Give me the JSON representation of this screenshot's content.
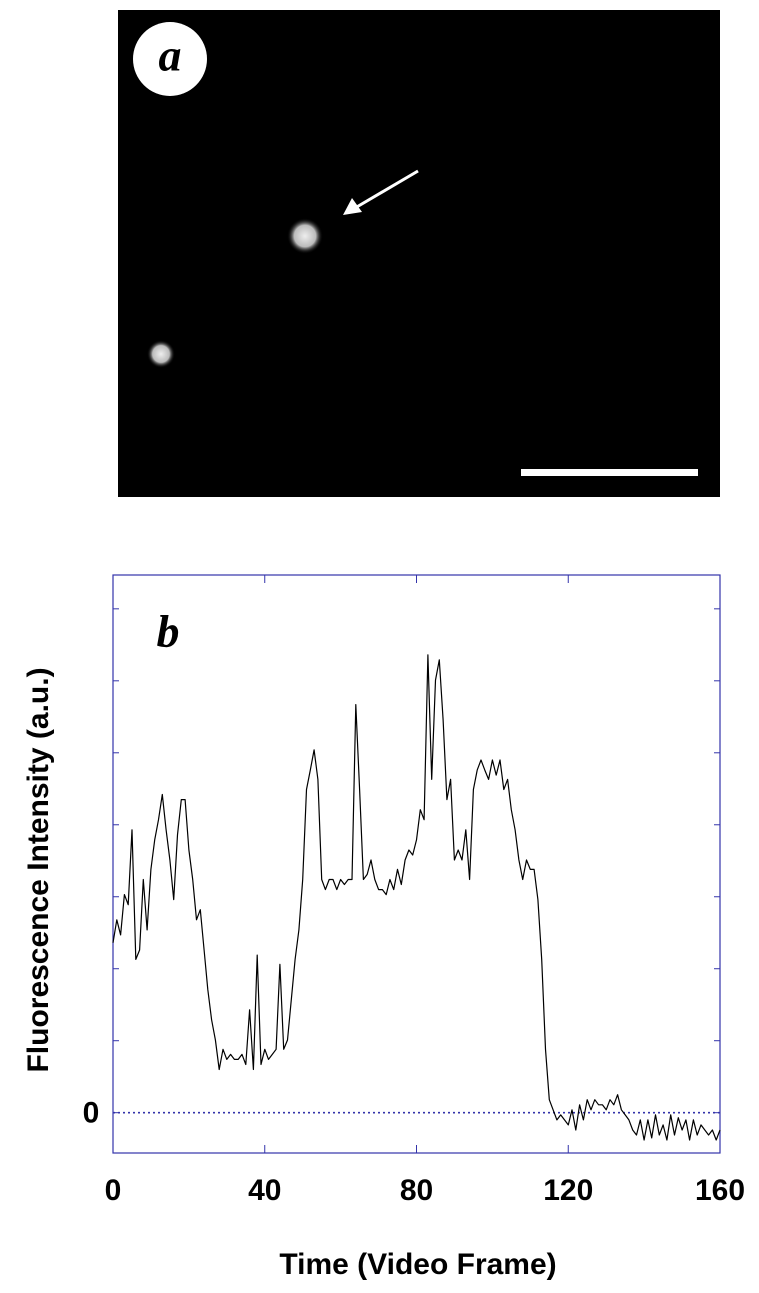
{
  "image_panel": {
    "label": "a"
  },
  "chart_data": {
    "type": "line",
    "panel_label": "b",
    "xlabel": "Time (Video Frame)",
    "ylabel": "Fluorescence Intensity (a.u.)",
    "color": "#000000",
    "axis_color": "#3333aa",
    "zero_line": true,
    "xlim": [
      0,
      160
    ],
    "xticks": [
      0,
      40,
      80,
      120,
      160
    ],
    "ylim": [
      -0.56,
      7.47
    ],
    "yticks": [
      0
    ],
    "yminor": [
      1,
      2,
      3,
      4,
      5,
      6,
      7
    ],
    "x": [
      0,
      1,
      2,
      3,
      4,
      5,
      6,
      7,
      8,
      9,
      10,
      11,
      12,
      13,
      14,
      15,
      16,
      17,
      18,
      19,
      20,
      21,
      22,
      23,
      24,
      25,
      26,
      27,
      28,
      29,
      30,
      31,
      32,
      33,
      34,
      35,
      36,
      37,
      38,
      39,
      40,
      41,
      42,
      43,
      44,
      45,
      46,
      47,
      48,
      49,
      50,
      51,
      52,
      53,
      54,
      55,
      56,
      57,
      58,
      59,
      60,
      61,
      62,
      63,
      64,
      65,
      66,
      67,
      68,
      69,
      70,
      71,
      72,
      73,
      74,
      75,
      76,
      77,
      78,
      79,
      80,
      81,
      82,
      83,
      84,
      85,
      86,
      87,
      88,
      89,
      90,
      91,
      92,
      93,
      94,
      95,
      96,
      97,
      98,
      99,
      100,
      101,
      102,
      103,
      104,
      105,
      106,
      107,
      108,
      109,
      110,
      111,
      112,
      113,
      114,
      115,
      116,
      117,
      118,
      119,
      120,
      121,
      122,
      123,
      124,
      125,
      126,
      127,
      128,
      129,
      130,
      131,
      132,
      133,
      134,
      135,
      136,
      137,
      138,
      139,
      140,
      141,
      142,
      143,
      144,
      145,
      146,
      147,
      148,
      149,
      150,
      151,
      152,
      153,
      154,
      155,
      156,
      157,
      158,
      159,
      160
    ],
    "values": [
      2.36,
      2.68,
      2.47,
      3.03,
      2.89,
      3.93,
      2.13,
      2.26,
      3.24,
      2.54,
      3.38,
      3.79,
      4.07,
      4.42,
      3.93,
      3.51,
      2.96,
      3.86,
      4.35,
      4.35,
      3.65,
      3.24,
      2.68,
      2.82,
      2.26,
      1.71,
      1.29,
      1.01,
      0.6,
      0.88,
      0.74,
      0.81,
      0.74,
      0.74,
      0.81,
      0.67,
      1.43,
      0.6,
      2.19,
      0.67,
      0.88,
      0.74,
      0.81,
      0.88,
      2.06,
      0.88,
      1.01,
      1.57,
      2.13,
      2.54,
      3.24,
      4.49,
      4.76,
      5.04,
      4.63,
      3.24,
      3.1,
      3.24,
      3.24,
      3.1,
      3.24,
      3.17,
      3.24,
      3.24,
      5.67,
      4.49,
      3.24,
      3.31,
      3.51,
      3.24,
      3.1,
      3.1,
      3.03,
      3.24,
      3.1,
      3.38,
      3.17,
      3.51,
      3.65,
      3.58,
      3.79,
      4.21,
      4.07,
      6.36,
      4.63,
      6.01,
      6.29,
      5.46,
      4.35,
      4.63,
      3.51,
      3.65,
      3.51,
      3.93,
      3.24,
      4.49,
      4.76,
      4.9,
      4.76,
      4.63,
      4.9,
      4.69,
      4.9,
      4.49,
      4.63,
      4.21,
      3.93,
      3.51,
      3.24,
      3.51,
      3.38,
      3.38,
      2.96,
      2.13,
      0.88,
      0.18,
      0.04,
      -0.1,
      -0.03,
      -0.1,
      -0.17,
      0.04,
      -0.24,
      0.11,
      -0.1,
      0.18,
      0.04,
      0.18,
      0.11,
      0.11,
      0.04,
      0.18,
      0.11,
      0.25,
      0.04,
      -0.03,
      -0.1,
      -0.24,
      -0.31,
      -0.1,
      -0.38,
      -0.1,
      -0.35,
      -0.03,
      -0.31,
      -0.17,
      -0.38,
      -0.03,
      -0.31,
      -0.07,
      -0.24,
      -0.1,
      -0.38,
      -0.1,
      -0.31,
      -0.17,
      -0.24,
      -0.31,
      -0.24,
      -0.38,
      -0.24
    ]
  }
}
